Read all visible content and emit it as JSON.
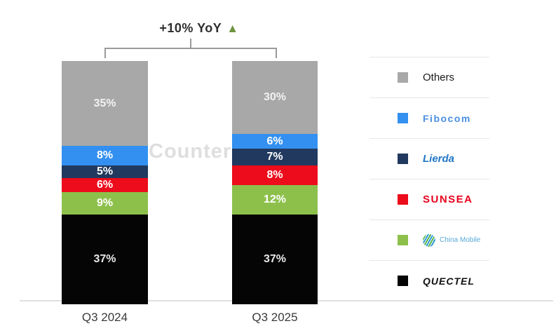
{
  "annotation": {
    "text": "+10% YoY",
    "arrow_glyph": "▲",
    "arrow_icon": "up-triangle",
    "arrow_color": "#6e9440"
  },
  "watermark": "Counterp",
  "chart_data": {
    "type": "bar",
    "subtype": "100%-stacked-column",
    "title": "+10% YoY",
    "unit": "%",
    "categories": [
      "Q3 2024",
      "Q3 2025"
    ],
    "series_order": "top-to-bottom",
    "series": [
      {
        "name": "Others",
        "values": [
          35,
          30
        ],
        "color": "#a8a8a8",
        "label_color": "#f2f2f2"
      },
      {
        "name": "Fibocom",
        "values": [
          8,
          6
        ],
        "color": "#3390f0",
        "label_color": "#ffffff"
      },
      {
        "name": "Lierda",
        "values": [
          5,
          7
        ],
        "color": "#21395e",
        "label_color": "#ffffff"
      },
      {
        "name": "SUNSEA",
        "values": [
          6,
          8
        ],
        "color": "#ec0c1b",
        "label_color": "#ffffff"
      },
      {
        "name": "China Mobile",
        "values": [
          9,
          12
        ],
        "color": "#8dc04b",
        "label_color": "#ffffff"
      },
      {
        "name": "QUECTEL",
        "values": [
          37,
          37
        ],
        "color": "#050505",
        "label_color": "#e9e9e9"
      }
    ],
    "ylim": [
      0,
      100
    ],
    "grid": false,
    "legend_position": "right"
  },
  "legend": {
    "items": [
      {
        "key": "others",
        "label": "Others",
        "swatch": "#a8a8a8"
      },
      {
        "key": "fibocom",
        "label": "Fibocom",
        "swatch": "#3390f0"
      },
      {
        "key": "lierda",
        "label": "Lierda",
        "swatch": "#21395e"
      },
      {
        "key": "sunsea",
        "label": "SUNSEA",
        "swatch": "#ec0c1b"
      },
      {
        "key": "china-mobile",
        "label": "China Mobile",
        "swatch": "#8dc04b",
        "icon": "china-mobile-logo"
      },
      {
        "key": "quectel",
        "label": "QUECTEL",
        "swatch": "#050505"
      }
    ]
  },
  "x_axis": {
    "labels": [
      "Q3 2024",
      "Q3 2025"
    ]
  }
}
